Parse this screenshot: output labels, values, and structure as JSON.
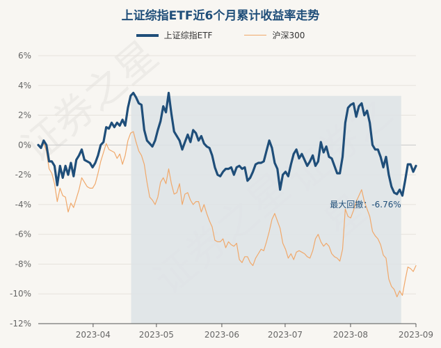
{
  "title": "上证综指ETF近6个月累计收益率走势",
  "legend": {
    "etf": "上证综指ETF",
    "hs300": "沪深300"
  },
  "annotation": "最大回撤：-6.76%",
  "watermark": "证券之星",
  "colors": {
    "etf": "#1f4e79",
    "hs300": "#f0a86a",
    "drawdown": "#dde3e6"
  },
  "chart_data": {
    "type": "line",
    "title": "上证综指ETF近6个月累计收益率走势",
    "xlabel": "",
    "ylabel": "",
    "ylim": [
      -12,
      6
    ],
    "y_ticks": [
      "6%",
      "4%",
      "2%",
      "0%",
      "-2%",
      "-4%",
      "-6%",
      "-8%",
      "-10%",
      "-12%"
    ],
    "x_ticks": [
      "2023-04",
      "2023-05",
      "2023-06",
      "2023-07",
      "2023-08",
      "2023-09"
    ],
    "legend_position": "top-center",
    "grid": "horizontal",
    "series": [
      {
        "name": "上证综指ETF",
        "values": [
          0,
          -0.2,
          0.3,
          0,
          -1.1,
          -1.1,
          -1.4,
          -2.7,
          -1.4,
          -2.2,
          -1.4,
          -2.0,
          -1.2,
          -2.1,
          -1.0,
          -0.7,
          -0.3,
          -1.0,
          -1.1,
          -1.2,
          -1.5,
          -1.2,
          -0.7,
          0.0,
          0.2,
          1.2,
          1.1,
          1.5,
          1.2,
          1.5,
          1.3,
          1.7,
          1.3,
          2.5,
          3.3,
          3.5,
          3.2,
          2.8,
          2.7,
          1.0,
          0.3,
          0.1,
          -0.1,
          0.3,
          1.0,
          1.6,
          2.6,
          2.2,
          3.5,
          2.1,
          0.9,
          0.6,
          0.3,
          -0.3,
          0.2,
          0.7,
          0.2,
          1.0,
          0.8,
          0.3,
          0.6,
          0.1,
          -0.1,
          -0.2,
          -0.7,
          -1.5,
          -2.0,
          -2.1,
          -1.8,
          -1.6,
          -1.6,
          -1.5,
          -2.0,
          -1.5,
          -1.4,
          -1.6,
          -1.5,
          -2.4,
          -2.2,
          -1.8,
          -1.3,
          -1.2,
          -1.2,
          -1.1,
          -0.4,
          0.3,
          -0.2,
          -1.2,
          -1.6,
          -3.0,
          -2.0,
          -1.8,
          -2.1,
          -1.3,
          -0.6,
          -0.3,
          -0.9,
          -0.6,
          -1.0,
          -1.4,
          -1.1,
          -0.7,
          -1.4,
          -1.1,
          0.2,
          -0.5,
          -0.1,
          -0.8,
          -0.9,
          -1.4,
          -1.9,
          -1.9,
          -0.8,
          1.5,
          2.5,
          2.7,
          2.8,
          1.9,
          2.6,
          2.8,
          2.0,
          2.3,
          1.5,
          0.0,
          -0.3,
          -0.3,
          -0.8,
          -1.5,
          -0.8,
          -2.0,
          -2.8,
          -3.2,
          -3.3,
          -3.0,
          -3.4,
          -2.4,
          -1.3,
          -1.3,
          -1.8,
          -1.4
        ],
        "start_date": "2023-03-06",
        "end_date": "2023-09-01"
      },
      {
        "name": "沪深300",
        "values": [
          0,
          -0.2,
          0.1,
          -0.4,
          -1.6,
          -1.9,
          -2.6,
          -3.8,
          -2.9,
          -3.4,
          -3.5,
          -4.5,
          -3.9,
          -4.2,
          -3.6,
          -3.0,
          -2.2,
          -2.5,
          -2.8,
          -2.9,
          -2.9,
          -2.6,
          -1.9,
          -1.1,
          -0.5,
          0.1,
          -0.3,
          -0.4,
          -0.5,
          -0.9,
          -0.6,
          -1.3,
          -0.7,
          0.3,
          0.8,
          0.9,
          0.2,
          -0.4,
          -0.7,
          -1.3,
          -2.5,
          -3.5,
          -3.7,
          -4.0,
          -3.5,
          -2.5,
          -2.2,
          -2.6,
          -1.6,
          -2.6,
          -3.3,
          -3.2,
          -2.6,
          -4.0,
          -3.3,
          -3.2,
          -3.7,
          -4.0,
          -3.8,
          -3.8,
          -4.5,
          -4.0,
          -4.6,
          -5.1,
          -5.5,
          -6.4,
          -6.5,
          -6.5,
          -6.3,
          -6.9,
          -6.5,
          -6.7,
          -6.8,
          -6.6,
          -7.7,
          -7.9,
          -7.5,
          -7.5,
          -7.9,
          -8.1,
          -7.6,
          -7.3,
          -7.0,
          -7.1,
          -6.5,
          -5.8,
          -5.0,
          -4.6,
          -5.1,
          -5.6,
          -6.6,
          -7.0,
          -7.6,
          -7.3,
          -7.7,
          -7.2,
          -7.1,
          -7.2,
          -7.3,
          -7.5,
          -7.6,
          -7.1,
          -6.3,
          -6.0,
          -6.5,
          -6.8,
          -6.6,
          -6.8,
          -7.3,
          -7.5,
          -7.6,
          -7.8,
          -7.0,
          -4.3,
          -4.8,
          -4.9,
          -4.4,
          -3.8,
          -3.4,
          -3.0,
          -3.8,
          -4.3,
          -4.8,
          -5.8,
          -6.1,
          -6.3,
          -6.7,
          -7.4,
          -7.6,
          -9.0,
          -9.5,
          -9.7,
          -10.2,
          -9.8,
          -10.1,
          -9.1,
          -8.2,
          -8.3,
          -8.5,
          -8.1
        ],
        "start_date": "2023-03-06",
        "end_date": "2023-09-01"
      }
    ],
    "max_drawdown": {
      "value": -6.76,
      "from_date": "2023-04-19",
      "to_date": "2023-08-25"
    }
  }
}
